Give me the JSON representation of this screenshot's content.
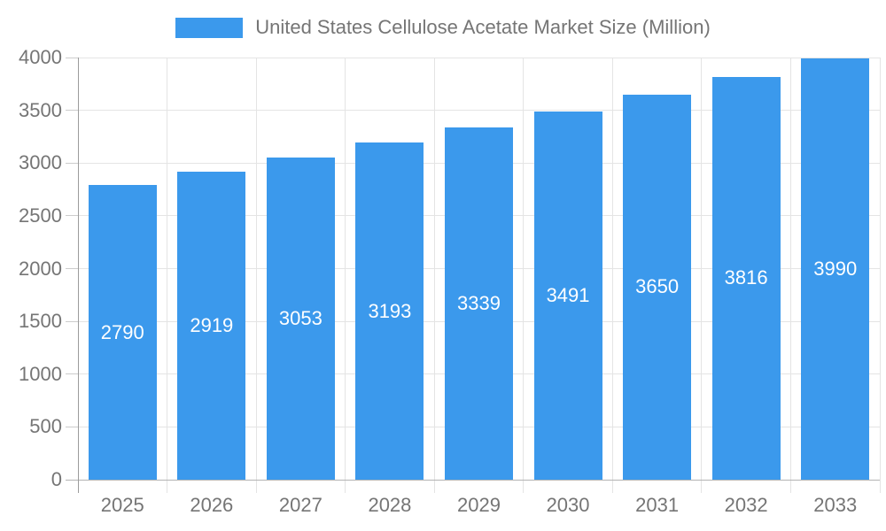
{
  "legend": {
    "label": "United States Cellulose Acetate Market Size (Million)"
  },
  "colors": {
    "bar": "#3b99ec",
    "grid": "#e4e4e4",
    "boundary_tick": "#e4e4e4",
    "y_tick": "#cccccc",
    "axis_y": "#9b9b9b",
    "axis_x": "#b3b3b3",
    "label_text": "#757575",
    "value_text": "#ffffff",
    "background": "#ffffff"
  },
  "chart_data": {
    "type": "bar",
    "title": "United States Cellulose Acetate Market Size (Million)",
    "categories": [
      "2025",
      "2026",
      "2027",
      "2028",
      "2029",
      "2030",
      "2031",
      "2032",
      "2033"
    ],
    "values": [
      2790,
      2919,
      3053,
      3193,
      3339,
      3491,
      3650,
      3816,
      3990
    ],
    "value_labels": [
      "2790",
      "2919",
      "3053",
      "3193",
      "3339",
      "3491",
      "3650",
      "3816",
      "3990"
    ],
    "xlabel": "",
    "ylabel": "",
    "ylim": [
      0,
      4000
    ],
    "ytick_step": 500,
    "ytick_labels": [
      "0",
      "500",
      "1000",
      "1500",
      "2000",
      "2500",
      "3000",
      "3500",
      "4000"
    ],
    "grid": true,
    "legend_position": "top"
  }
}
